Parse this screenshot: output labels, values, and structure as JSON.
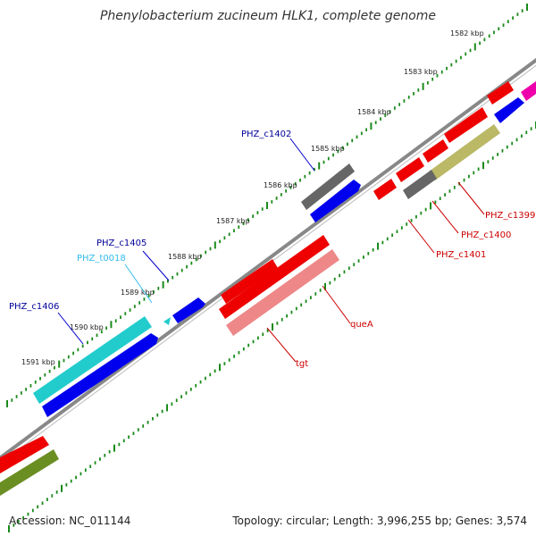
{
  "title": "Phenylobacterium zucineum HLK1, complete genome",
  "footer": {
    "accession": "Accession: NC_011144",
    "stats": "Topology: circular; Length: 3,996,255 bp; Genes: 3,574"
  },
  "ticks": [
    "1582 kbp",
    "1583 kbp",
    "1584 kbp",
    "1585 kbp",
    "1586 kbp",
    "1587 kbp",
    "1588 kbp",
    "1589 kbp",
    "1590 kbp",
    "1591 kbp"
  ],
  "labels": {
    "c1402": "PHZ_c1402",
    "c1405": "PHZ_c1405",
    "t0018": "PHZ_t0018",
    "c1406": "PHZ_c1406",
    "c1399": "PHZ_c1399",
    "c1400": "PHZ_c1400",
    "c1401": "PHZ_c1401",
    "queA": "queA",
    "tgt": "tgt"
  },
  "colors": {
    "backbone": "#888888",
    "tick": "#1a8a1a",
    "forward_cds": "#0000ee",
    "reverse_cds": "#ee0000",
    "rrna_trna": "#22cccc",
    "gray_feature": "#666666",
    "olive_feature": "#bbb866",
    "green_feature": "#6b8e23",
    "pink_feature": "#ee8888",
    "magenta_feature": "#ee00aa",
    "label_forward": "#000099",
    "label_reverse": "#cc0000",
    "label_trna": "#33bbee"
  }
}
